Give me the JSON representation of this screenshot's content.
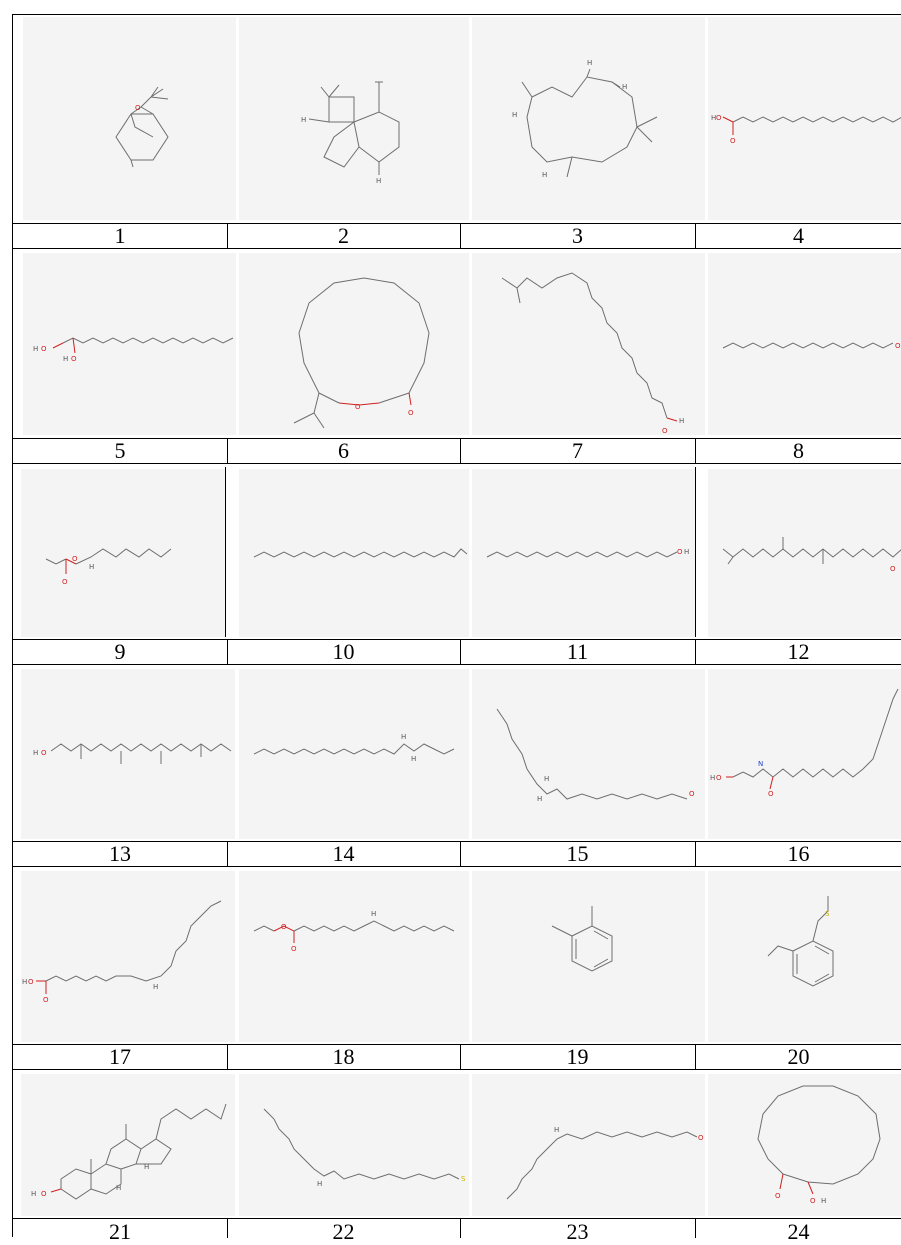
{
  "labels": [
    "1",
    "2",
    "3",
    "4",
    "5",
    "6",
    "7",
    "8",
    "9",
    "10",
    "11",
    "12",
    "13",
    "14",
    "15",
    "16",
    "17",
    "18",
    "19",
    "20",
    "21",
    "22",
    "23",
    "24"
  ],
  "atoms": {
    "oxygen": "O",
    "hydrogen": "H",
    "nitrogen": "N",
    "sulfur": "S"
  },
  "colors": {
    "oxygen": "#d02020",
    "nitrogen": "#2040d0",
    "sulfur": "#c8b400",
    "bond": "#6e6e6e",
    "cell_bg": "#f4f4f4"
  }
}
